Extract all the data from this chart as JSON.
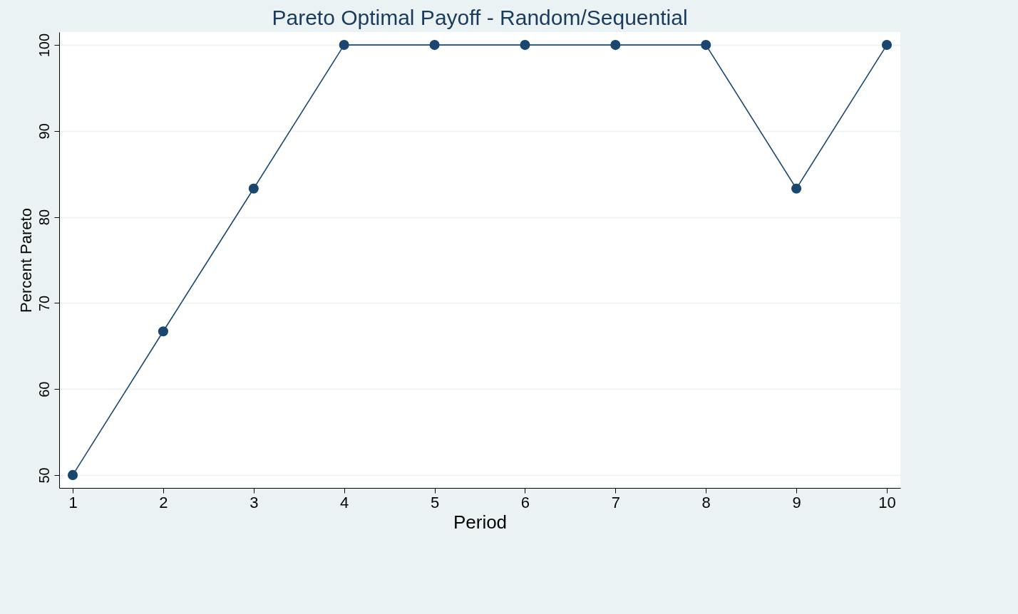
{
  "chart_data": {
    "type": "line",
    "title": "Pareto Optimal Payoff - Random/Sequential",
    "xlabel": "Period",
    "ylabel": "Percent Pareto",
    "x": [
      1,
      2,
      3,
      4,
      5,
      6,
      7,
      8,
      9,
      10
    ],
    "series": [
      {
        "color": "#1a476f",
        "values": [
          50,
          66.7,
          83.3,
          100,
          100,
          100,
          100,
          100,
          83.3,
          100
        ]
      }
    ],
    "xlim": [
      0.85,
      10.15
    ],
    "xticks": [
      1,
      2,
      3,
      4,
      5,
      6,
      7,
      8,
      9,
      10
    ],
    "ylim": [
      48.5,
      101.5
    ],
    "yticks": [
      50,
      60,
      70,
      80,
      90,
      100
    ],
    "grid": "y",
    "marker": "circle",
    "line_style": "solid",
    "legend": false
  }
}
